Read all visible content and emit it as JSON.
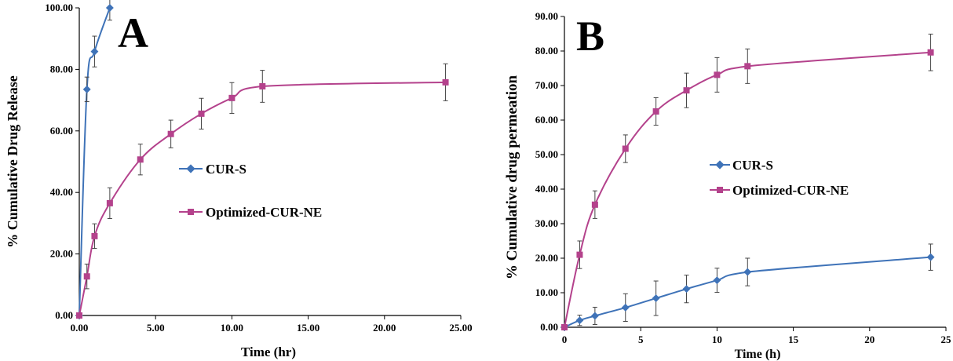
{
  "colors": {
    "cur_s": "#3f73b8",
    "cur_ne": "#b4428c",
    "axis": "#000000"
  },
  "chart_data": [
    {
      "type": "line",
      "panel_label": "A",
      "xlabel": "Time (hr)",
      "ylabel": "% Cumulative Drug Release",
      "xlim": [
        0,
        25
      ],
      "ylim": [
        0,
        100
      ],
      "xticks": [
        "0.00",
        "5.00",
        "10.00",
        "15.00",
        "20.00",
        "25.00"
      ],
      "yticks": [
        "0.00",
        "20.00",
        "40.00",
        "60.00",
        "80.00",
        "100.00"
      ],
      "legend_position": "middle-center",
      "grid": false,
      "series": [
        {
          "name": "CUR-S",
          "color": "#3f73b8",
          "marker": "diamond",
          "x": [
            0,
            0.5,
            1,
            2
          ],
          "y": [
            0,
            73.5,
            85.8,
            100
          ],
          "err": [
            0,
            4,
            5,
            4
          ]
        },
        {
          "name": "Optimized-CUR-NE",
          "color": "#b4428c",
          "marker": "square",
          "x": [
            0,
            0.5,
            1,
            2,
            4,
            6,
            8,
            10,
            12,
            24
          ],
          "y": [
            0,
            12.7,
            25.8,
            36.5,
            50.7,
            59,
            65.6,
            70.7,
            74.5,
            75.8
          ],
          "err": [
            0,
            4,
            4,
            5,
            5,
            4.5,
            5,
            5,
            5.2,
            6
          ]
        }
      ]
    },
    {
      "type": "line",
      "panel_label": "B",
      "xlabel": "Time (h)",
      "ylabel": "% Cumulative drug permeation",
      "xlim": [
        0,
        25
      ],
      "ylim": [
        0,
        90
      ],
      "xticks": [
        "0",
        "5",
        "10",
        "15",
        "20",
        "25"
      ],
      "yticks": [
        "0.00",
        "10.00",
        "20.00",
        "30.00",
        "40.00",
        "50.00",
        "60.00",
        "70.00",
        "80.00",
        "90.00"
      ],
      "legend_position": "middle-center",
      "grid": false,
      "series": [
        {
          "name": "CUR-S",
          "color": "#3f73b8",
          "marker": "diamond",
          "x": [
            0,
            1,
            2,
            4,
            6,
            8,
            10,
            12,
            24
          ],
          "y": [
            0,
            2,
            3.3,
            5.7,
            8.4,
            11.1,
            13.6,
            16,
            20.3
          ],
          "err": [
            0,
            1.5,
            2.5,
            4,
            5,
            4,
            3.5,
            4,
            3.8
          ]
        },
        {
          "name": "Optimized-CUR-NE",
          "color": "#b4428c",
          "marker": "square",
          "x": [
            0,
            1,
            2,
            4,
            6,
            8,
            10,
            12,
            24
          ],
          "y": [
            0,
            21,
            35.5,
            51.7,
            62.5,
            68.6,
            73.1,
            75.6,
            79.6
          ],
          "err": [
            0,
            4,
            4,
            4,
            4,
            5,
            5,
            5,
            5.3
          ]
        }
      ]
    }
  ]
}
